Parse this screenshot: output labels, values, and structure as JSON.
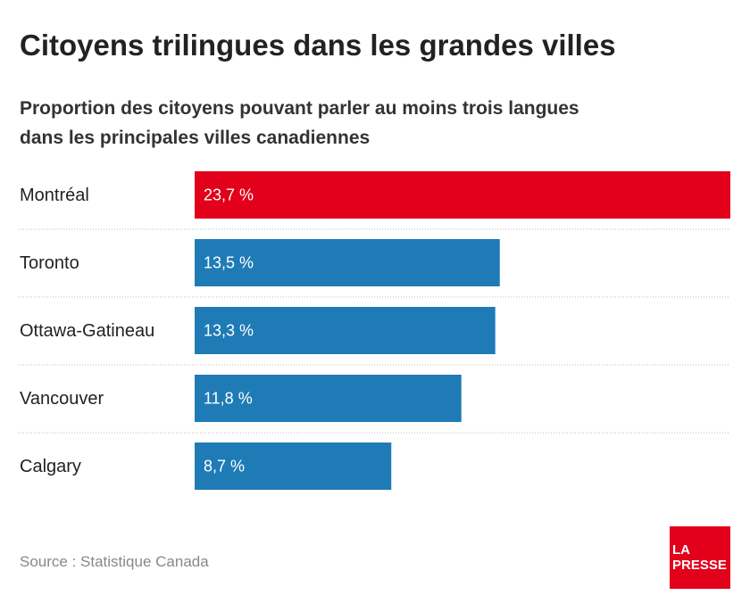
{
  "chart_data": {
    "type": "bar",
    "orientation": "horizontal",
    "title": "Citoyens trilingues dans les grandes villes",
    "subtitle": [
      "Proportion des citoyens pouvant parler au moins trois langues",
      "dans les principales villes canadiennes"
    ],
    "categories": [
      "Montréal",
      "Toronto",
      "Ottawa-Gatineau",
      "Vancouver",
      "Calgary"
    ],
    "values": [
      23.7,
      13.5,
      13.3,
      11.8,
      8.7
    ],
    "value_labels": [
      "23,7 %",
      "13,5 %",
      "13,3 %",
      "11,8 %",
      "8,7 %"
    ],
    "colors": [
      "#e2001a",
      "#1f7bb6",
      "#1f7bb6",
      "#1f7bb6",
      "#1f7bb6"
    ],
    "source": "Source : Statistique Canada",
    "logo": [
      "LA",
      "PRESSE"
    ]
  }
}
